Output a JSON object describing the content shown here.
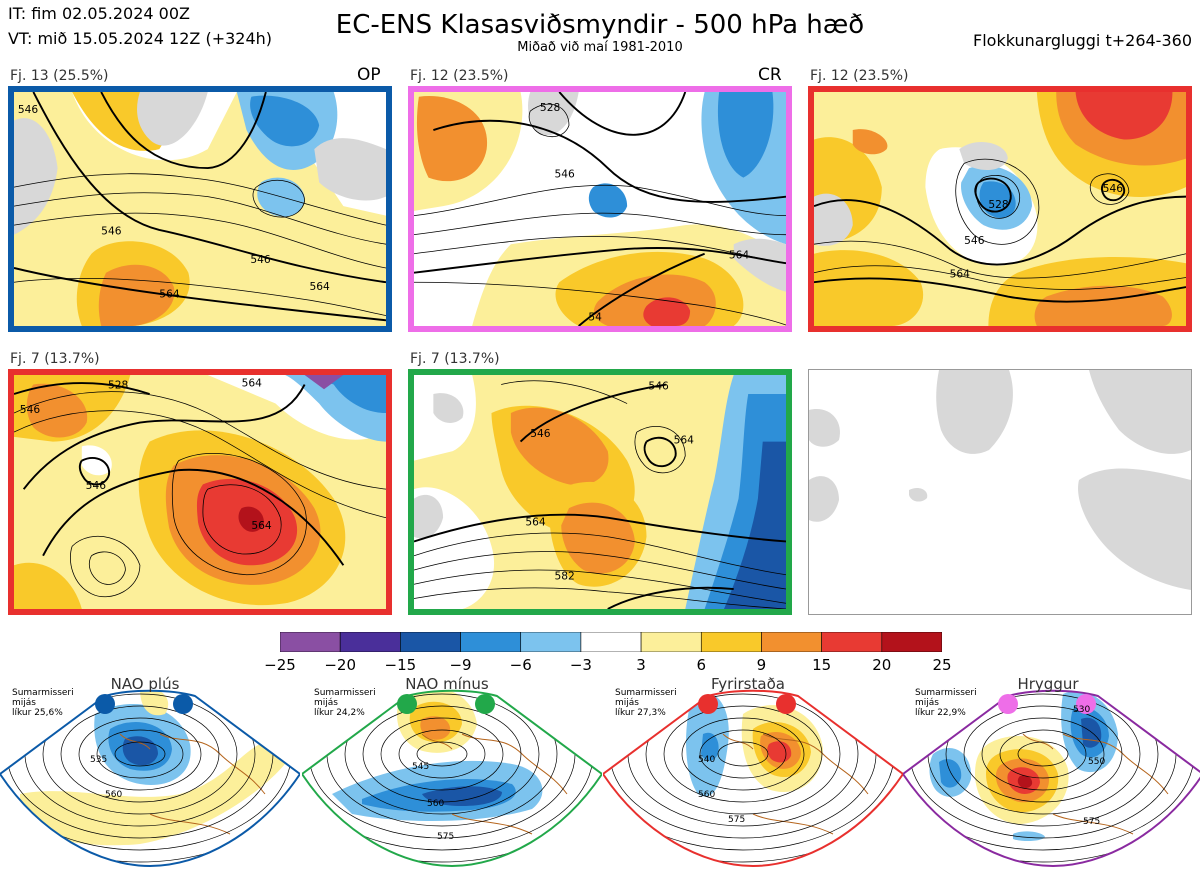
{
  "header": {
    "it": "IT: fim 02.05.2024 00Z",
    "vt": "VT: mið 15.05.2024 12Z  (+324h)",
    "title": "EC-ENS Klasasviðsmyndir - 500 hPa hæð",
    "subtitle": "Miðað við maí 1981-2010",
    "window": "Flokkunargluggi t+264-360"
  },
  "panels": [
    {
      "label": "Fj. 13 (25.5%)",
      "tag": "OP",
      "border_color": "#0b5aa8",
      "contours": [
        "546",
        "564",
        "546",
        "546",
        "564"
      ]
    },
    {
      "label": "Fj. 12 (23.5%)",
      "tag": "CR",
      "border_color": "#ee6ee8",
      "contours": [
        "528",
        "546",
        "564",
        "54"
      ]
    },
    {
      "label": "Fj. 12 (23.5%)",
      "tag": "",
      "border_color": "#e8302e",
      "contours": [
        "528",
        "546",
        "564",
        "546"
      ]
    },
    {
      "label": "Fj. 7 (13.7%)",
      "tag": "",
      "border_color": "#e8302e",
      "contours": [
        "528",
        "546",
        "564",
        "564",
        "546"
      ]
    },
    {
      "label": "Fj. 7 (13.7%)",
      "tag": "",
      "border_color": "#22a84a",
      "contours": [
        "546",
        "564",
        "546",
        "564",
        "582"
      ]
    }
  ],
  "colorbar": {
    "colors": [
      "#8a4fa3",
      "#4a2f9a",
      "#1a56a6",
      "#2e8fd8",
      "#7cc3ee",
      "#ffffff",
      "#fcef9a",
      "#f9c92a",
      "#f2902f",
      "#e83a33",
      "#b3121b"
    ],
    "ticks": [
      "−25",
      "−20",
      "−15",
      "−9",
      "−6",
      "−3",
      "3",
      "6",
      "9",
      "15",
      "20",
      "25"
    ]
  },
  "regimes": [
    {
      "name": "NAO plús",
      "season": "Sumarmisseri",
      "mean": "mijás",
      "likelihood": "líkur 25,6%",
      "dot_color": "#0b5aa8",
      "border_color": "#0b5aa8",
      "contours": [
        "535",
        "560"
      ]
    },
    {
      "name": "NAO mínus",
      "season": "Sumarmisseri",
      "mean": "mijás",
      "likelihood": "líkur 24,2%",
      "dot_color": "#22a84a",
      "border_color": "#22a84a",
      "contours": [
        "545",
        "560",
        "575"
      ]
    },
    {
      "name": "Fyrirstaða",
      "season": "Sumarmisseri",
      "mean": "mijás",
      "likelihood": "líkur 27,3%",
      "dot_color": "#e8302e",
      "border_color": "#e8302e",
      "contours": [
        "540",
        "560",
        "575"
      ]
    },
    {
      "name": "Hryggur",
      "season": "Sumarmisseri",
      "mean": "mijás",
      "likelihood": "líkur 22,9%",
      "dot_color": "#ee6ee8",
      "border_color": "#8a2aa0",
      "contours": [
        "530",
        "550",
        "575"
      ]
    }
  ]
}
